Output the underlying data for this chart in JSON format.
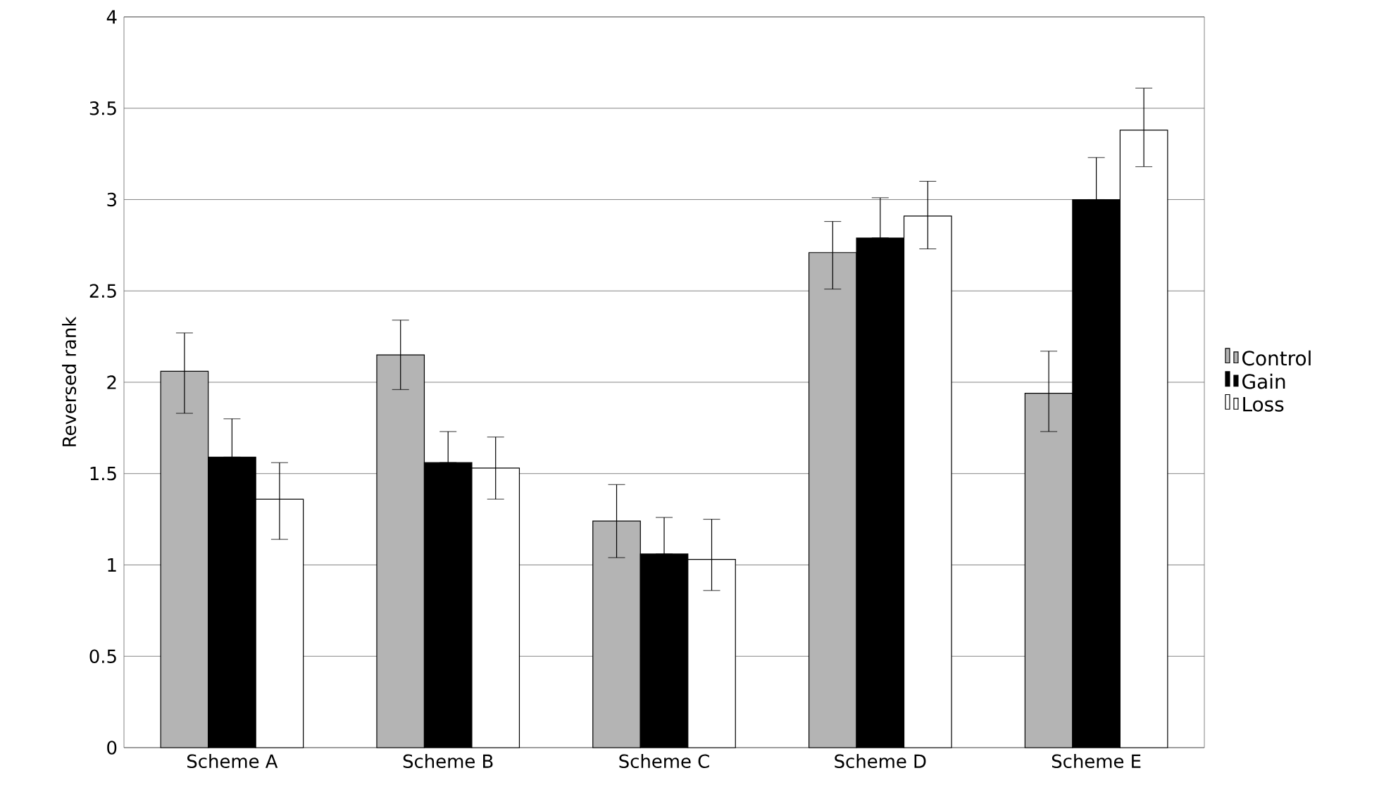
{
  "chart_data": {
    "type": "bar",
    "ylabel": "Reversed rank",
    "categories": [
      "Scheme A",
      "Scheme B",
      "Scheme C",
      "Scheme D",
      "Scheme E"
    ],
    "series": [
      {
        "name": "Control",
        "color": "#b4b4b4",
        "values": [
          2.06,
          2.15,
          1.24,
          2.71,
          1.94
        ],
        "errors": [
          [
            1.83,
            2.27
          ],
          [
            1.96,
            2.34
          ],
          [
            1.04,
            1.44
          ],
          [
            2.51,
            2.88
          ],
          [
            1.73,
            2.17
          ]
        ]
      },
      {
        "name": "Gain",
        "color": "#000000",
        "values": [
          1.59,
          1.56,
          1.06,
          2.79,
          3.0
        ],
        "errors": [
          [
            1.59,
            1.8
          ],
          [
            1.56,
            1.73
          ],
          [
            1.06,
            1.26
          ],
          [
            2.79,
            3.01
          ],
          [
            3.0,
            3.23
          ]
        ]
      },
      {
        "name": "Loss",
        "color": "#ffffff",
        "values": [
          1.36,
          1.53,
          1.03,
          2.91,
          3.38
        ],
        "errors": [
          [
            1.14,
            1.56
          ],
          [
            1.36,
            1.7
          ],
          [
            0.86,
            1.25
          ],
          [
            2.73,
            3.1
          ],
          [
            3.18,
            3.61
          ]
        ]
      }
    ],
    "ylim": [
      0,
      4
    ],
    "yticks": [
      0,
      0.5,
      1,
      1.5,
      2,
      2.5,
      3,
      3.5,
      4
    ],
    "grid": "y",
    "legend": "right"
  }
}
